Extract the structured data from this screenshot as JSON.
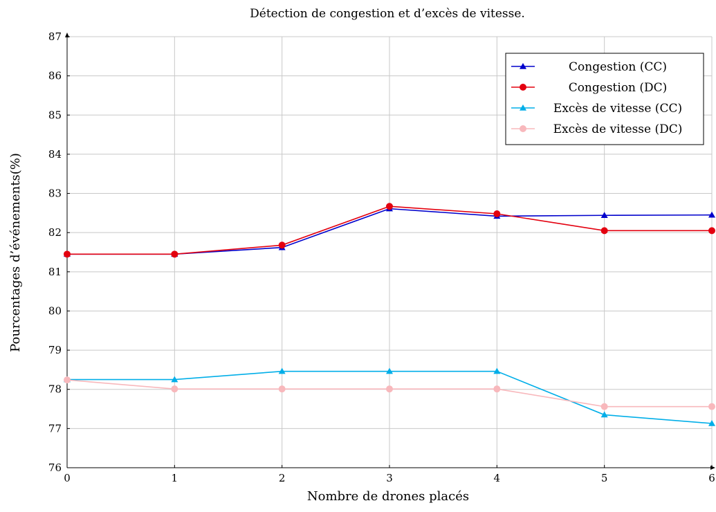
{
  "chart_data": {
    "type": "line",
    "title": "Détection de congestion et d’excès de vitesse.",
    "xlabel": "Nombre de drones placés",
    "ylabel": "Pourcentages d’événements(%)",
    "xlim": [
      0,
      6
    ],
    "ylim": [
      76,
      87
    ],
    "x_ticks": [
      "0",
      "1",
      "2",
      "3",
      "4",
      "5",
      "6"
    ],
    "y_ticks": [
      "76",
      "77",
      "78",
      "79",
      "80",
      "81",
      "82",
      "83",
      "84",
      "85",
      "86",
      "87"
    ],
    "grid": true,
    "legend_position": "top-right",
    "x": [
      0,
      1,
      2,
      3,
      4,
      5,
      6
    ],
    "series": [
      {
        "name": "Congestion (CC)",
        "color": "#0000cc",
        "marker": "triangle",
        "values": [
          81.45,
          81.45,
          81.62,
          82.61,
          82.42,
          82.44,
          82.45
        ]
      },
      {
        "name": "Congestion (DC)",
        "color": "#e3000f",
        "marker": "circle",
        "values": [
          81.45,
          81.45,
          81.68,
          82.67,
          82.48,
          82.05,
          82.05
        ]
      },
      {
        "name": "Excès de vitesse (CC)",
        "color": "#00aee8",
        "marker": "triangle",
        "values": [
          78.25,
          78.25,
          78.46,
          78.46,
          78.46,
          77.35,
          77.13
        ]
      },
      {
        "name": "Excès de vitesse (DC)",
        "color": "#f8b8bc",
        "marker": "circle",
        "values": [
          78.24,
          78.01,
          78.01,
          78.01,
          78.01,
          77.56,
          77.56
        ]
      }
    ]
  }
}
